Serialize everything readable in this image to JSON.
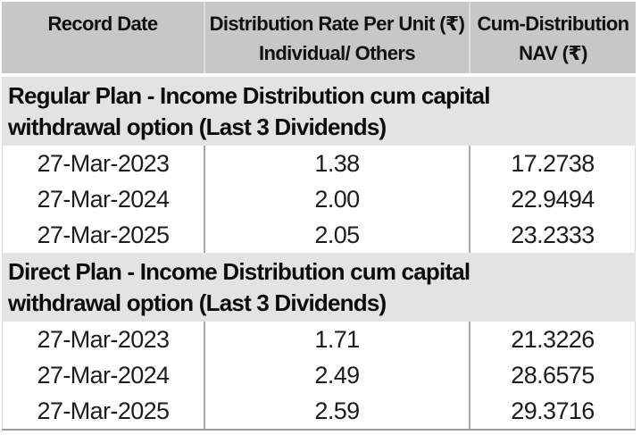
{
  "colors": {
    "header_bg": "#c6c7c6",
    "section_bg": "#e3e3e3",
    "text": "#111111",
    "column_divider": "#aaaaaa",
    "bottom_border": "#9c9c9c"
  },
  "table": {
    "columns": [
      {
        "line1": "Record Date",
        "line2": ""
      },
      {
        "line1": "Distribution Rate Per Unit  (₹)",
        "line2": "Individual/ Others"
      },
      {
        "line1": "Cum-Distribution",
        "line2": "NAV (₹)"
      }
    ],
    "sections": [
      {
        "title_lines": [
          "Regular Plan - Income Distribution cum capital",
          "withdrawal option (Last 3 Dividends)"
        ],
        "rows": [
          {
            "record_date": "27-Mar-2023",
            "rate": "1.38",
            "nav": "17.2738"
          },
          {
            "record_date": "27-Mar-2024",
            "rate": "2.00",
            "nav": "22.9494"
          },
          {
            "record_date": "27-Mar-2025",
            "rate": "2.05",
            "nav": "23.2333"
          }
        ]
      },
      {
        "title_lines": [
          "Direct Plan - Income Distribution cum capital",
          "withdrawal option (Last 3 Dividends)"
        ],
        "rows": [
          {
            "record_date": "27-Mar-2023",
            "rate": "1.71",
            "nav": "21.3226"
          },
          {
            "record_date": "27-Mar-2024",
            "rate": "2.49",
            "nav": "28.6575"
          },
          {
            "record_date": "27-Mar-2025",
            "rate": "2.59",
            "nav": "29.3716"
          }
        ]
      }
    ]
  }
}
